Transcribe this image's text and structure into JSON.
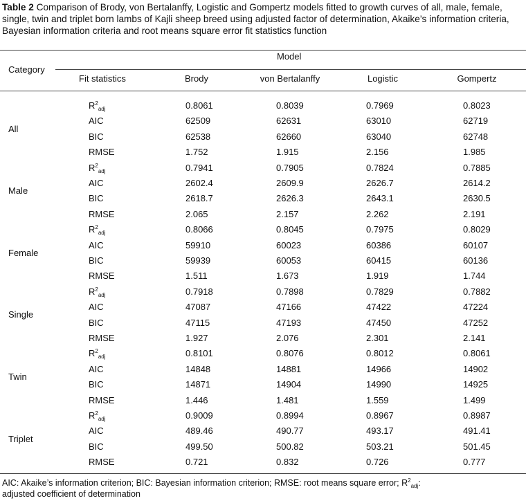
{
  "caption": {
    "label": "Table 2",
    "text": "Comparison of Brody, von Bertalanffy, Logistic and Gompertz models fitted to growth curves of all, male, female, single, twin and triplet born lambs of Kajli sheep breed using adjusted factor of determination, Akaike’s information criteria, Bayesian information criteria and root means square error fit statistics function"
  },
  "header": {
    "category": "Category",
    "model": "Model",
    "fit_statistics": "Fit statistics",
    "models": [
      "Brody",
      "von Bertalanffy",
      "Logistic",
      "Gompertz"
    ]
  },
  "groups": [
    {
      "name": "All",
      "rows": [
        {
          "stat": {
            "text": "R",
            "sup": "2",
            "sub": "adj"
          },
          "values": [
            "0.8061",
            "0.8039",
            "0.7969",
            "0.8023"
          ]
        },
        {
          "stat": "AIC",
          "values": [
            "62509",
            "62631",
            "63010",
            "62719"
          ]
        },
        {
          "stat": "BIC",
          "values": [
            "62538",
            "62660",
            "63040",
            "62748"
          ]
        },
        {
          "stat": "RMSE",
          "values": [
            "1.752",
            "1.915",
            "2.156",
            "1.985"
          ]
        }
      ]
    },
    {
      "name": "Male",
      "rows": [
        {
          "stat": {
            "text": "R",
            "sup": "2",
            "sub": "adj"
          },
          "values": [
            "0.7941",
            "0.7905",
            "0.7824",
            "0.7885"
          ]
        },
        {
          "stat": "AIC",
          "values": [
            "2602.4",
            "2609.9",
            "2626.7",
            "2614.2"
          ]
        },
        {
          "stat": "BIC",
          "values": [
            "2618.7",
            "2626.3",
            "2643.1",
            "2630.5"
          ]
        },
        {
          "stat": "RMSE",
          "values": [
            "2.065",
            "2.157",
            "2.262",
            "2.191"
          ]
        }
      ]
    },
    {
      "name": "Female",
      "rows": [
        {
          "stat": {
            "text": "R",
            "sup": "2",
            "sub": "adj"
          },
          "values": [
            "0.8066",
            "0.8045",
            "0.7975",
            "0.8029"
          ]
        },
        {
          "stat": "AIC",
          "values": [
            "59910",
            "60023",
            "60386",
            "60107"
          ]
        },
        {
          "stat": "BIC",
          "values": [
            "59939",
            "60053",
            "60415",
            "60136"
          ]
        },
        {
          "stat": "RMSE",
          "values": [
            "1.511",
            "1.673",
            "1.919",
            "1.744"
          ]
        }
      ]
    },
    {
      "name": "Single",
      "rows": [
        {
          "stat": {
            "text": "R",
            "sup": "2",
            "sub": "adj"
          },
          "values": [
            "0.7918",
            "0.7898",
            "0.7829",
            "0.7882"
          ]
        },
        {
          "stat": "AIC",
          "values": [
            "47087",
            "47166",
            "47422",
            "47224"
          ]
        },
        {
          "stat": "BIC",
          "values": [
            "47115",
            "47193",
            "47450",
            "47252"
          ]
        },
        {
          "stat": "RMSE",
          "values": [
            "1.927",
            "2.076",
            "2.301",
            "2.141"
          ]
        }
      ]
    },
    {
      "name": "Twin",
      "rows": [
        {
          "stat": {
            "text": "R",
            "sup": "2",
            "sub": "adj"
          },
          "values": [
            "0.8101",
            "0.8076",
            "0.8012",
            "0.8061"
          ]
        },
        {
          "stat": "AIC",
          "values": [
            "14848",
            "14881",
            "14966",
            "14902"
          ]
        },
        {
          "stat": "BIC",
          "values": [
            "14871",
            "14904",
            "14990",
            "14925"
          ]
        },
        {
          "stat": "RMSE",
          "values": [
            "1.446",
            "1.481",
            "1.559",
            "1.499"
          ]
        }
      ]
    },
    {
      "name": "Triplet",
      "rows": [
        {
          "stat": {
            "text": "R",
            "sup": "2",
            "sub": "adj"
          },
          "values": [
            "0.9009",
            "0.8994",
            "0.8967",
            "0.8987"
          ]
        },
        {
          "stat": "AIC",
          "values": [
            "489.46",
            "490.77",
            "493.17",
            "491.41"
          ]
        },
        {
          "stat": "BIC",
          "values": [
            "499.50",
            "500.82",
            "503.21",
            "501.45"
          ]
        },
        {
          "stat": "RMSE",
          "values": [
            "0.721",
            "0.832",
            "0.726",
            "0.777"
          ]
        }
      ]
    }
  ],
  "footnote": {
    "before": "AIC: Akaike’s information criterion; BIC: Bayesian information criterion; RMSE: root means square error; R",
    "sup": "2",
    "sub": "adj",
    "after": ": adjusted coefficient of determination"
  }
}
